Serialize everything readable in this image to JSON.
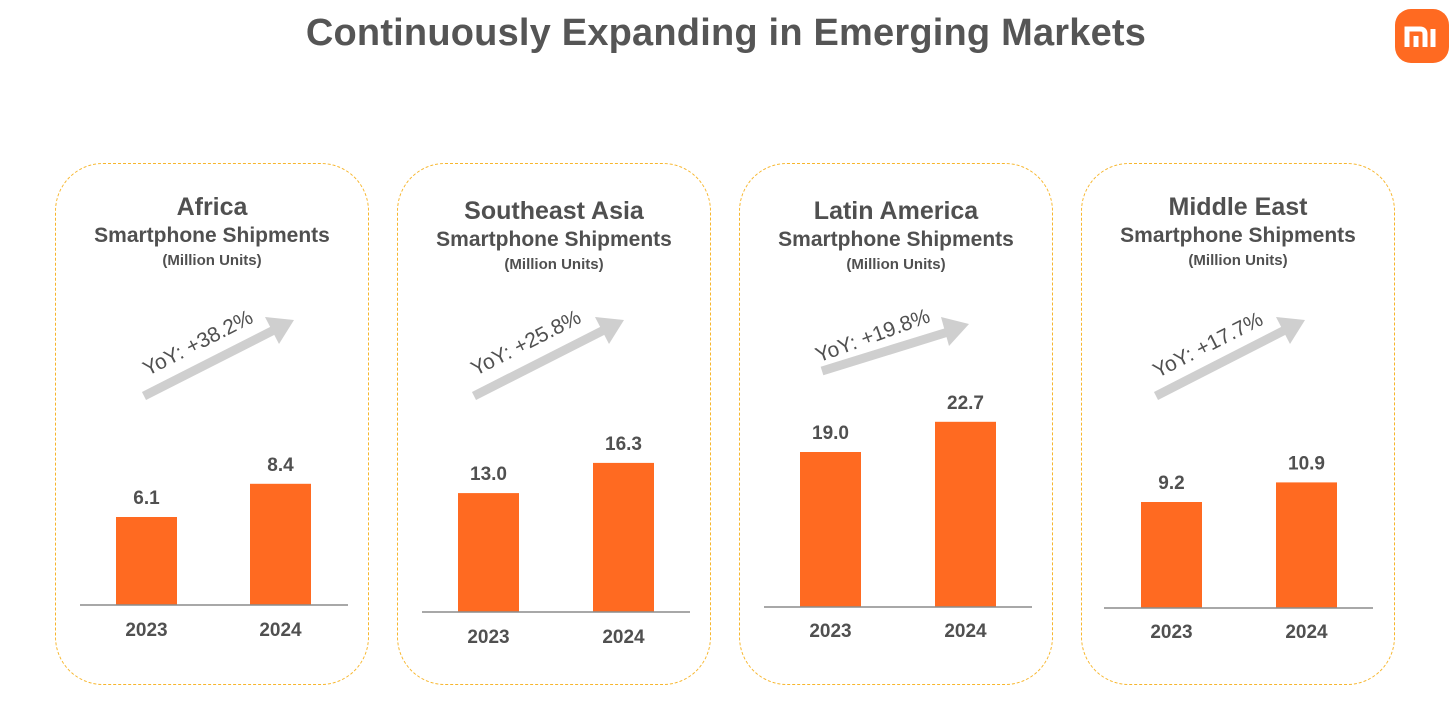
{
  "page": {
    "title": "Continuously Expanding in Emerging Markets",
    "logo_text": "mi"
  },
  "colors": {
    "bar": "#ff6a21",
    "arrow": "#cfcfcf",
    "border": "#f7b62d",
    "axis": "#8c8c8c",
    "text": "#505050"
  },
  "chart_data": [
    {
      "type": "bar",
      "title": "Africa",
      "subtitle": "Smartphone Shipments",
      "unit": "(Million Units)",
      "categories": [
        "2023",
        "2024"
      ],
      "values": [
        6.1,
        8.4
      ],
      "value_labels": [
        "6.1",
        "8.4"
      ],
      "annotation": "YoY: +38.2%"
    },
    {
      "type": "bar",
      "title": "Southeast Asia",
      "subtitle": "Smartphone Shipments",
      "unit": "(Million Units)",
      "categories": [
        "2023",
        "2024"
      ],
      "values": [
        13.0,
        16.3
      ],
      "value_labels": [
        "13.0",
        "16.3"
      ],
      "annotation": "YoY: +25.8%"
    },
    {
      "type": "bar",
      "title": "Latin America",
      "subtitle": "Smartphone Shipments",
      "unit": "(Million Units)",
      "categories": [
        "2023",
        "2024"
      ],
      "values": [
        19.0,
        22.7
      ],
      "value_labels": [
        "19.0",
        "22.7"
      ],
      "annotation": "YoY: +19.8%"
    },
    {
      "type": "bar",
      "title": "Middle East",
      "subtitle": "Smartphone Shipments",
      "unit": "(Million Units)",
      "categories": [
        "2023",
        "2024"
      ],
      "values": [
        9.2,
        10.9
      ],
      "value_labels": [
        "9.2",
        "10.9"
      ],
      "annotation": "YoY: +17.7%"
    }
  ]
}
